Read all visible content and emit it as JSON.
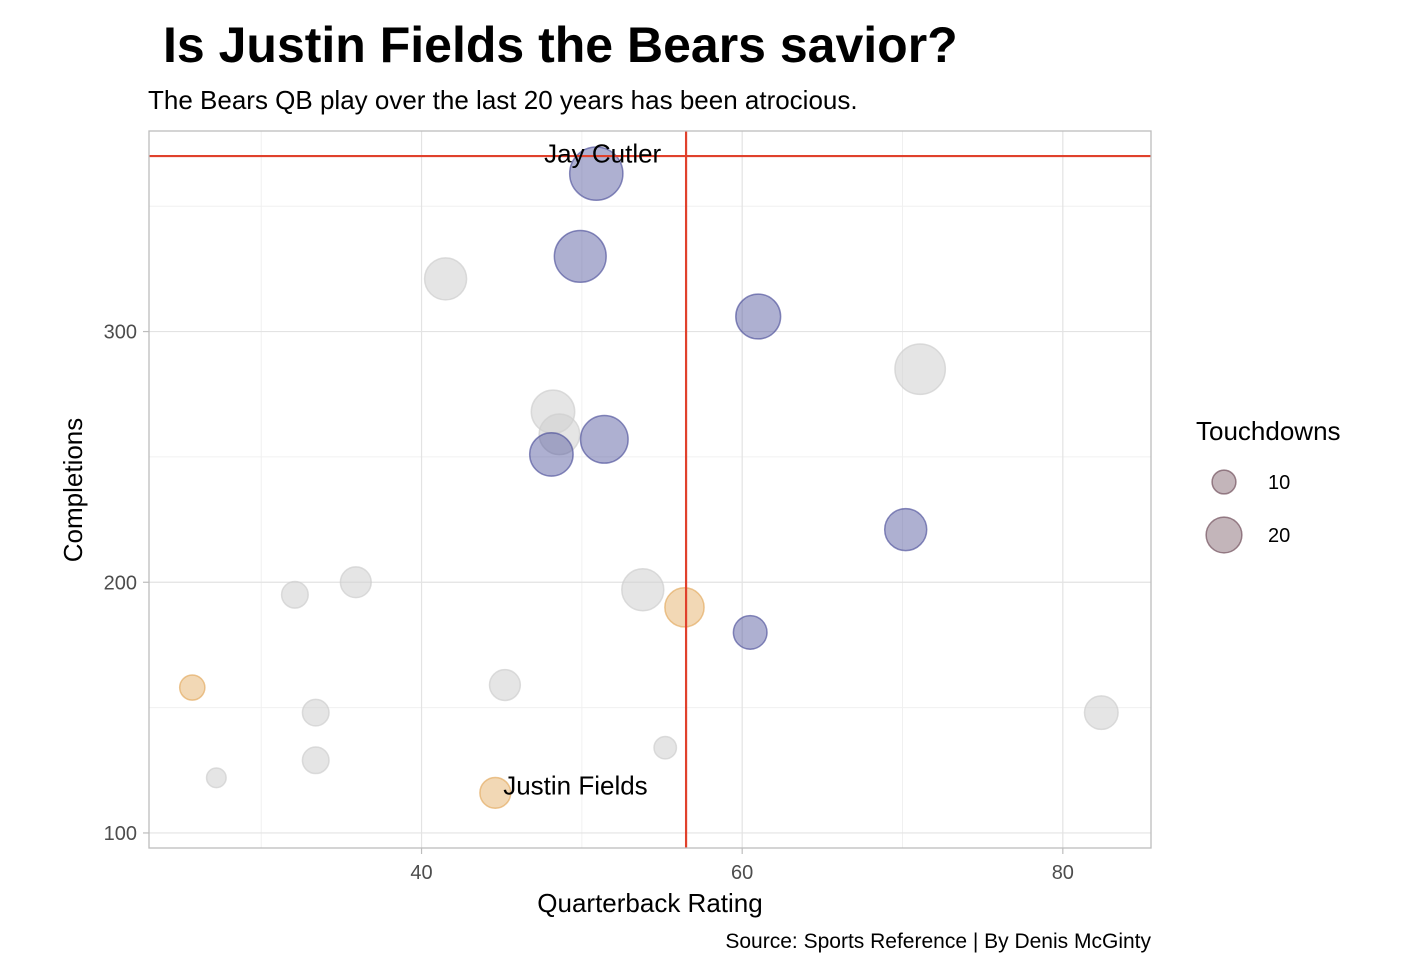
{
  "chart_data": {
    "type": "scatter",
    "title": "Is Justin Fields the Bears savior?",
    "subtitle": "The Bears QB play over the last 20 years has been atrocious.",
    "caption": "Source: Sports Reference | By Denis McGinty",
    "xlabel": "Quarterback Rating",
    "ylabel": "Completions",
    "xlim": [
      23,
      85.5
    ],
    "ylim": [
      94,
      380
    ],
    "x_ticks": [
      40,
      60,
      80
    ],
    "y_ticks": [
      100,
      200,
      300
    ],
    "grid": true,
    "size_legend": {
      "title": "Touchdowns",
      "placement": "right",
      "entries": [
        {
          "label": "10",
          "value": 10
        },
        {
          "label": "20",
          "value": 20
        }
      ]
    },
    "colors": {
      "highlight": "#4B4F9A",
      "other": "#CFCFCF",
      "fields": "#E2A85A",
      "reference_line": "#E0412C",
      "legend_point": "#7A5A66"
    },
    "reference_lines": {
      "vertical_x": 56.5,
      "horizontal_y": 370
    },
    "annotations": [
      {
        "text": "Jay Cutler",
        "x": 51.3,
        "y": 371
      },
      {
        "text": "Justin Fields",
        "x": 49.6,
        "y": 119
      }
    ],
    "points": [
      {
        "x": 50.9,
        "y": 363,
        "td": 28,
        "group": "highlight"
      },
      {
        "x": 49.9,
        "y": 330,
        "td": 27,
        "group": "highlight"
      },
      {
        "x": 61.0,
        "y": 306,
        "td": 22,
        "group": "highlight"
      },
      {
        "x": 51.4,
        "y": 257,
        "td": 24,
        "group": "highlight"
      },
      {
        "x": 48.1,
        "y": 251,
        "td": 21,
        "group": "highlight"
      },
      {
        "x": 70.2,
        "y": 221,
        "td": 20,
        "group": "highlight"
      },
      {
        "x": 60.5,
        "y": 180,
        "td": 14,
        "group": "highlight"
      },
      {
        "x": 41.5,
        "y": 321,
        "td": 20,
        "group": "other"
      },
      {
        "x": 71.1,
        "y": 285,
        "td": 26,
        "group": "other"
      },
      {
        "x": 48.2,
        "y": 268,
        "td": 21,
        "group": "other"
      },
      {
        "x": 48.6,
        "y": 259,
        "td": 19,
        "group": "other"
      },
      {
        "x": 53.8,
        "y": 197,
        "td": 20,
        "group": "other"
      },
      {
        "x": 35.9,
        "y": 200,
        "td": 12,
        "group": "other"
      },
      {
        "x": 32.1,
        "y": 195,
        "td": 9,
        "group": "other"
      },
      {
        "x": 45.2,
        "y": 159,
        "td": 12,
        "group": "other"
      },
      {
        "x": 33.4,
        "y": 148,
        "td": 9,
        "group": "other"
      },
      {
        "x": 82.4,
        "y": 148,
        "td": 14,
        "group": "other"
      },
      {
        "x": 33.4,
        "y": 129,
        "td": 9,
        "group": "other"
      },
      {
        "x": 55.2,
        "y": 134,
        "td": 6,
        "group": "other"
      },
      {
        "x": 27.2,
        "y": 122,
        "td": 4,
        "group": "other"
      },
      {
        "x": 56.4,
        "y": 190,
        "td": 18,
        "group": "fields"
      },
      {
        "x": 25.7,
        "y": 158,
        "td": 8,
        "group": "fields"
      },
      {
        "x": 44.6,
        "y": 116,
        "td": 12,
        "group": "fields"
      }
    ]
  }
}
